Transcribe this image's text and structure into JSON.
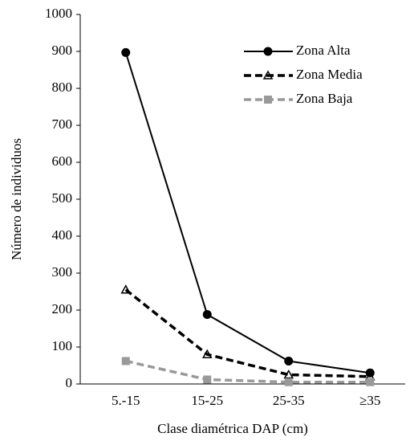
{
  "chart_data": {
    "type": "line",
    "x_label": "Clase diamétrica DAP (cm)",
    "y_label": "Número de individuos",
    "categories": [
      "5.-15",
      "15-25",
      "25-35",
      "≥35"
    ],
    "series": [
      {
        "name": "Zona Alta",
        "color": "#000000",
        "dashed": false,
        "marker": "circle",
        "values": [
          897,
          188,
          62,
          30
        ]
      },
      {
        "name": "Zona Media",
        "color": "#000000",
        "dashed": true,
        "marker": "triangle",
        "values": [
          255,
          80,
          25,
          20
        ]
      },
      {
        "name": "Zona Baja",
        "color": "#999999",
        "dashed": true,
        "marker": "square",
        "values": [
          62,
          12,
          5,
          5
        ]
      }
    ],
    "ylim": [
      0,
      1000
    ],
    "yticks": [
      0,
      100,
      200,
      300,
      400,
      500,
      600,
      700,
      800,
      900,
      1000
    ],
    "grid": false,
    "legend": "top-right"
  }
}
